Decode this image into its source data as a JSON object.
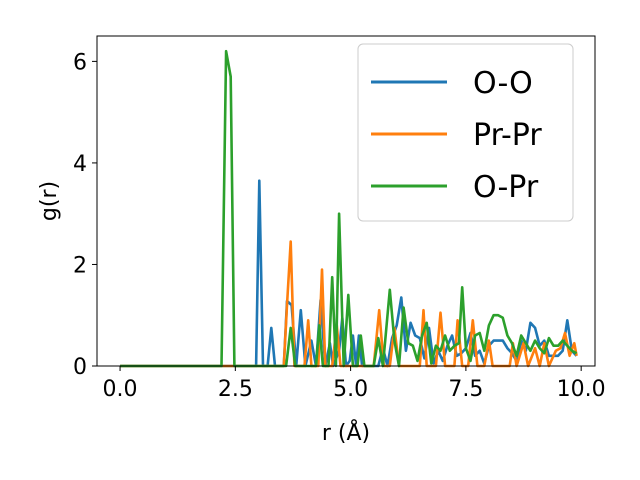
{
  "chart_data": {
    "type": "line",
    "title": "",
    "xlabel": "r (Å)",
    "ylabel": "g(r)",
    "xlim": [
      -0.5,
      10.3
    ],
    "ylim": [
      0,
      6.5
    ],
    "xticks": [
      "0.0",
      "2.5",
      "5.0",
      "7.5",
      "10.0"
    ],
    "xtick_values": [
      0,
      2.5,
      5,
      7.5,
      10
    ],
    "yticks": [
      "0",
      "2",
      "4",
      "6"
    ],
    "ytick_values": [
      0,
      2,
      4,
      6
    ],
    "grid": false,
    "legend_position": "top-right",
    "series": [
      {
        "name": "O-O",
        "color": "#1f77b4",
        "points": [
          [
            0,
            0
          ],
          [
            2.95,
            0
          ],
          [
            3.02,
            3.65
          ],
          [
            3.1,
            0
          ],
          [
            3.2,
            0
          ],
          [
            3.28,
            0.75
          ],
          [
            3.36,
            0
          ],
          [
            3.55,
            0
          ],
          [
            3.62,
            1.28
          ],
          [
            3.72,
            1.2
          ],
          [
            3.82,
            0
          ],
          [
            3.92,
            1.1
          ],
          [
            4.02,
            0
          ],
          [
            4.15,
            0.5
          ],
          [
            4.25,
            0
          ],
          [
            4.35,
            1.3
          ],
          [
            4.45,
            0
          ],
          [
            4.55,
            0.45
          ],
          [
            4.62,
            0
          ],
          [
            4.75,
            0.3
          ],
          [
            4.82,
            0.95
          ],
          [
            4.9,
            0
          ],
          [
            4.98,
            0.1
          ],
          [
            5.05,
            0.6
          ],
          [
            5.12,
            0
          ],
          [
            5.18,
            0.6
          ],
          [
            5.25,
            0
          ],
          [
            5.6,
            0
          ],
          [
            5.7,
            0.35
          ],
          [
            5.8,
            0
          ],
          [
            5.9,
            0.55
          ],
          [
            6.0,
            0.8
          ],
          [
            6.1,
            1.35
          ],
          [
            6.2,
            0.3
          ],
          [
            6.3,
            0.85
          ],
          [
            6.4,
            0.6
          ],
          [
            6.5,
            0.55
          ],
          [
            6.6,
            0.15
          ],
          [
            6.7,
            0.75
          ],
          [
            6.8,
            0.05
          ],
          [
            6.9,
            0.3
          ],
          [
            7.0,
            0.1
          ],
          [
            7.1,
            0.4
          ],
          [
            7.2,
            0.6
          ],
          [
            7.3,
            0.2
          ],
          [
            7.4,
            0.25
          ],
          [
            7.5,
            0.35
          ],
          [
            7.6,
            0.65
          ],
          [
            7.7,
            0.2
          ],
          [
            7.8,
            0.3
          ],
          [
            7.9,
            0.05
          ],
          [
            8.0,
            0.4
          ],
          [
            8.1,
            0.5
          ],
          [
            8.2,
            0.5
          ],
          [
            8.3,
            0.5
          ],
          [
            8.4,
            0.35
          ],
          [
            8.5,
            0.25
          ],
          [
            8.6,
            0.1
          ],
          [
            8.7,
            0.5
          ],
          [
            8.8,
            0.3
          ],
          [
            8.9,
            0.85
          ],
          [
            9.0,
            0.75
          ],
          [
            9.1,
            0.4
          ],
          [
            9.2,
            0.5
          ],
          [
            9.3,
            0.2
          ],
          [
            9.4,
            0.2
          ],
          [
            9.5,
            0.2
          ],
          [
            9.6,
            0.3
          ],
          [
            9.7,
            0.9
          ],
          [
            9.8,
            0.3
          ],
          [
            9.9,
            0.2
          ]
        ]
      },
      {
        "name": "Pr-Pr",
        "color": "#ff7f0e",
        "points": [
          [
            0,
            0
          ],
          [
            3.55,
            0
          ],
          [
            3.62,
            1.2
          ],
          [
            3.7,
            2.45
          ],
          [
            3.78,
            0
          ],
          [
            4.0,
            0
          ],
          [
            4.08,
            0.9
          ],
          [
            4.15,
            0
          ],
          [
            4.3,
            0
          ],
          [
            4.38,
            1.9
          ],
          [
            4.45,
            0
          ],
          [
            4.6,
            0
          ],
          [
            4.7,
            0.8
          ],
          [
            4.78,
            0
          ],
          [
            5.5,
            0
          ],
          [
            5.62,
            1.1
          ],
          [
            5.72,
            0
          ],
          [
            5.85,
            0
          ],
          [
            5.95,
            0.75
          ],
          [
            6.05,
            0
          ],
          [
            6.5,
            0
          ],
          [
            6.58,
            1.1
          ],
          [
            6.65,
            0
          ],
          [
            6.85,
            0
          ],
          [
            6.95,
            1.05
          ],
          [
            7.05,
            0
          ],
          [
            7.25,
            0
          ],
          [
            7.32,
            0.9
          ],
          [
            7.42,
            0
          ],
          [
            7.55,
            0
          ],
          [
            7.65,
            0.9
          ],
          [
            7.75,
            0
          ],
          [
            7.9,
            0
          ],
          [
            8.0,
            0.5
          ],
          [
            8.08,
            0
          ],
          [
            8.45,
            0
          ],
          [
            8.52,
            0.45
          ],
          [
            8.6,
            0
          ],
          [
            8.75,
            0.45
          ],
          [
            8.85,
            0
          ],
          [
            9.0,
            0.35
          ],
          [
            9.1,
            0
          ],
          [
            9.2,
            0.45
          ],
          [
            9.3,
            0
          ],
          [
            9.45,
            0.3
          ],
          [
            9.55,
            0.35
          ],
          [
            9.65,
            0.65
          ],
          [
            9.75,
            0.2
          ],
          [
            9.85,
            0.45
          ],
          [
            9.9,
            0.2
          ]
        ]
      },
      {
        "name": "O-Pr",
        "color": "#2ca02c",
        "points": [
          [
            0,
            0
          ],
          [
            2.2,
            0
          ],
          [
            2.3,
            6.2
          ],
          [
            2.4,
            5.7
          ],
          [
            2.48,
            0
          ],
          [
            3.6,
            0
          ],
          [
            3.7,
            0.75
          ],
          [
            3.8,
            0
          ],
          [
            4.25,
            0
          ],
          [
            4.32,
            0.8
          ],
          [
            4.4,
            0
          ],
          [
            4.52,
            0
          ],
          [
            4.6,
            1.75
          ],
          [
            4.68,
            0
          ],
          [
            4.75,
            3.0
          ],
          [
            4.85,
            0
          ],
          [
            4.95,
            1.4
          ],
          [
            5.05,
            0
          ],
          [
            5.15,
            0
          ],
          [
            5.22,
            0.6
          ],
          [
            5.3,
            0
          ],
          [
            5.5,
            0
          ],
          [
            5.6,
            0.55
          ],
          [
            5.7,
            0
          ],
          [
            5.75,
            0.5
          ],
          [
            5.85,
            1.5
          ],
          [
            5.95,
            0.5
          ],
          [
            6.05,
            0
          ],
          [
            6.15,
            1.15
          ],
          [
            6.25,
            0.45
          ],
          [
            6.35,
            0.4
          ],
          [
            6.45,
            0.1
          ],
          [
            6.55,
            0.6
          ],
          [
            6.65,
            0.85
          ],
          [
            6.75,
            0.05
          ],
          [
            6.85,
            0.4
          ],
          [
            6.95,
            0.3
          ],
          [
            7.05,
            0.6
          ],
          [
            7.15,
            0.3
          ],
          [
            7.25,
            0.4
          ],
          [
            7.35,
            0.45
          ],
          [
            7.42,
            1.55
          ],
          [
            7.5,
            0.35
          ],
          [
            7.6,
            0.1
          ],
          [
            7.7,
            0.6
          ],
          [
            7.8,
            0.65
          ],
          [
            7.9,
            0.3
          ],
          [
            8.0,
            0.8
          ],
          [
            8.1,
            1.0
          ],
          [
            8.2,
            1.0
          ],
          [
            8.3,
            0.95
          ],
          [
            8.4,
            0.6
          ],
          [
            8.5,
            0.45
          ],
          [
            8.6,
            0.2
          ],
          [
            8.7,
            0.6
          ],
          [
            8.8,
            0.45
          ],
          [
            8.9,
            0.3
          ],
          [
            9.0,
            0.5
          ],
          [
            9.1,
            0.35
          ],
          [
            9.2,
            0.25
          ],
          [
            9.3,
            0.55
          ],
          [
            9.4,
            0.4
          ],
          [
            9.5,
            0.4
          ],
          [
            9.6,
            0.5
          ],
          [
            9.7,
            0.4
          ],
          [
            9.8,
            0.3
          ],
          [
            9.9,
            0.25
          ]
        ]
      }
    ]
  }
}
